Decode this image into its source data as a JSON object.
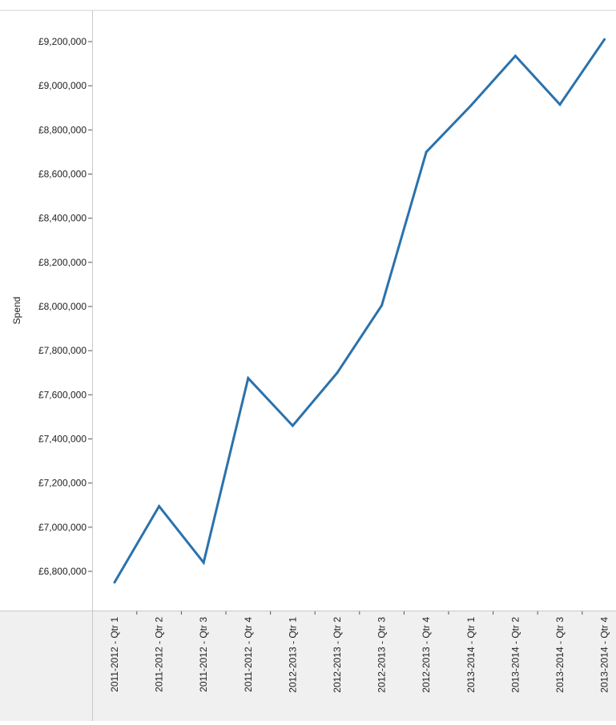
{
  "chart_data": {
    "type": "line",
    "title": "",
    "xlabel": "",
    "ylabel": "Spend",
    "categories": [
      "2011-2012 - Qtr 1",
      "2011-2012 - Qtr 2",
      "2011-2012 - Qtr 3",
      "2011-2012 - Qtr 4",
      "2012-2013 - Qtr 1",
      "2012-2013 - Qtr 2",
      "2012-2013 - Qtr 3",
      "2012-2013 - Qtr 4",
      "2013-2014 - Qtr 1",
      "2013-2014 - Qtr 2",
      "2013-2014 - Qtr 3",
      "2013-2014 - Qtr 4"
    ],
    "series": [
      {
        "values": [
          6750000,
          7095000,
          6840000,
          7675000,
          7460000,
          7700000,
          8005000,
          8700000,
          8910000,
          9135000,
          8915000,
          9210000
        ]
      }
    ],
    "yticks": [
      6800000,
      7000000,
      7200000,
      7400000,
      7600000,
      7800000,
      8000000,
      8200000,
      8400000,
      8600000,
      8800000,
      9000000,
      9200000
    ],
    "ytick_labels": [
      "£6,800,000",
      "£7,000,000",
      "£7,200,000",
      "£7,400,000",
      "£7,600,000",
      "£7,800,000",
      "£8,000,000",
      "£8,200,000",
      "£8,400,000",
      "£8,600,000",
      "£8,800,000",
      "£9,000,000",
      "£9,200,000"
    ],
    "ylim": [
      6620000,
      9300000
    ],
    "grid": false,
    "colors": {
      "line": "#2a72ac",
      "panel": "#f0f0f0",
      "axis": "#c8c8c8",
      "tick": "#555555"
    }
  }
}
